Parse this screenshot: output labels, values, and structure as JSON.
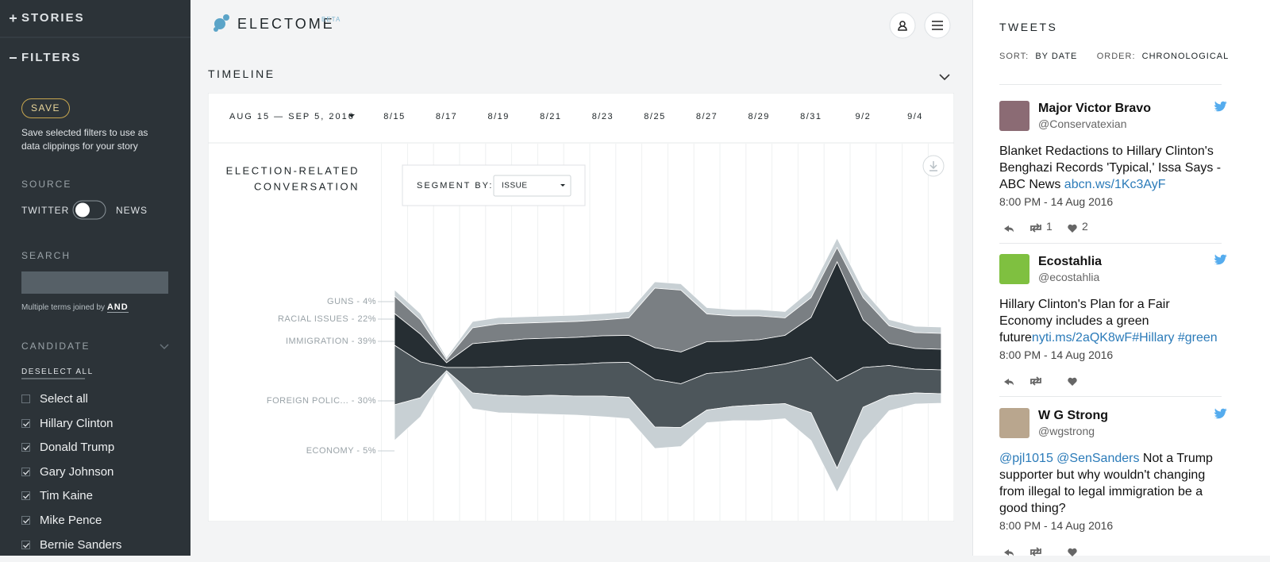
{
  "sidebar": {
    "stories": "STORIES",
    "filters": "FILTERS",
    "save_button": "SAVE",
    "save_note": "Save selected filters to use as data clippings for your story",
    "source_label": "SOURCE",
    "toggle_left": "TWITTER",
    "toggle_right": "NEWS",
    "search_label": "SEARCH",
    "search_hint": "Multiple terms joined by",
    "search_hint_op": "AND",
    "candidate_label": "CANDIDATE",
    "deselect": "DESELECT ALL",
    "candidates": [
      {
        "label": "Select all",
        "checked": false
      },
      {
        "label": "Hillary Clinton",
        "checked": true
      },
      {
        "label": "Donald Trump",
        "checked": true
      },
      {
        "label": "Gary Johnson",
        "checked": true
      },
      {
        "label": "Tim Kaine",
        "checked": true
      },
      {
        "label": "Mike Pence",
        "checked": true
      },
      {
        "label": "Bernie Sanders",
        "checked": true
      }
    ]
  },
  "header": {
    "brand": "ELECTOME",
    "badge": "BETA"
  },
  "timeline": {
    "title": "TIMELINE",
    "range": "AUG 15 — SEP 5, 2016",
    "ticks": [
      "8/15",
      "8/17",
      "8/19",
      "8/21",
      "8/23",
      "8/25",
      "8/27",
      "8/29",
      "8/31",
      "9/2",
      "9/4"
    ],
    "chart_title": [
      "ELECTION-RELATED",
      "CONVERSATION"
    ],
    "segment_label": "SEGMENT BY:",
    "segment_value": "ISSUE",
    "stream": {
      "type": "streamgraph",
      "layers": [
        {
          "label": "GUNS - 4%",
          "color": "#c8d0d4",
          "values": [
            8,
            8,
            3,
            8,
            8,
            8,
            8,
            8,
            8,
            8,
            8,
            8,
            8,
            8,
            8,
            8,
            10,
            12,
            10,
            8,
            8,
            8
          ]
        },
        {
          "label": "RACIAL ISSUES - 22%",
          "color": "#7a7f83",
          "values": [
            22,
            18,
            4,
            20,
            22,
            20,
            20,
            20,
            20,
            22,
            75,
            78,
            35,
            32,
            30,
            22,
            25,
            18,
            28,
            22,
            20,
            20
          ]
        },
        {
          "label": "IMMIGRATION - 39%",
          "color": "#262e33",
          "values": [
            40,
            35,
            6,
            30,
            32,
            34,
            34,
            34,
            34,
            34,
            40,
            40,
            40,
            38,
            36,
            36,
            50,
            150,
            60,
            28,
            26,
            26
          ]
        },
        {
          "label": "FOREIGN POLIC... - 30%",
          "color": "#4d565b",
          "values": [
            75,
            45,
            4,
            32,
            36,
            38,
            38,
            40,
            42,
            44,
            60,
            55,
            46,
            44,
            46,
            50,
            70,
            110,
            50,
            38,
            30,
            30
          ]
        },
        {
          "label": "ECONOMY - 5%",
          "color": "#c8d0d4",
          "values": [
            45,
            24,
            3,
            20,
            22,
            22,
            24,
            24,
            26,
            27,
            27,
            24,
            16,
            18,
            20,
            19,
            35,
            30,
            42,
            19,
            14,
            12
          ]
        }
      ]
    }
  },
  "tweets": {
    "title": "TWEETS",
    "sort_label": "SORT:",
    "sort_value": "BY DATE",
    "order_label": "ORDER:",
    "order_value": "CHRONOLOGICAL",
    "items": [
      {
        "name": "Major Victor Bravo",
        "handle": "@Conservatexian",
        "parts": [
          {
            "text": "Blanket Redactions to Hillary Clinton's Benghazi Records 'Typical,' Issa Says - ABC News ",
            "link": false
          },
          {
            "text": "abcn.ws/1Kc3AyF",
            "link": true
          }
        ],
        "time": "8:00 PM - 14 Aug 2016",
        "retweets": 1,
        "likes": 2
      },
      {
        "name": "Ecostahlia",
        "handle": "@ecostahlia",
        "parts": [
          {
            "text": "Hillary Clinton's Plan for a Fair Economy includes a green future",
            "link": false
          },
          {
            "text": "nyti.ms/2aQK8wF",
            "link": true
          },
          {
            "text": "#Hillary",
            "link": true
          },
          {
            "text": "#green",
            "link": true
          }
        ],
        "time": "8:00 PM - 14 Aug 2016"
      },
      {
        "name": "W G Strong",
        "handle": "@wgstrong",
        "parts": [
          {
            "text": "@pjl1015",
            "link": true
          },
          {
            "text": "@SenSanders",
            "link": true
          },
          {
            "text": " Not a Trump supporter but why wouldn't changing from illegal to legal immigration be a good thing?",
            "link": false
          }
        ],
        "time": "8:00 PM - 14 Aug 2016"
      }
    ]
  }
}
